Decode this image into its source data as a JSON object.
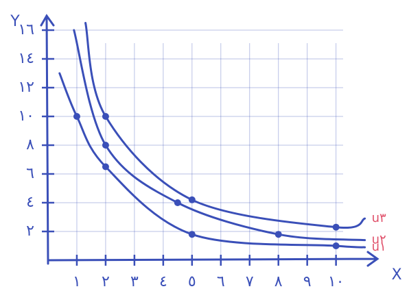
{
  "chart_data": {
    "type": "line",
    "x_label": "X",
    "y_label": "Y",
    "xlim": [
      0,
      11.2
    ],
    "ylim": [
      0,
      17
    ],
    "xticks": [
      {
        "value": 1,
        "label": "١"
      },
      {
        "value": 2,
        "label": "٢"
      },
      {
        "value": 3,
        "label": "٣"
      },
      {
        "value": 4,
        "label": "٤"
      },
      {
        "value": 5,
        "label": "٥"
      },
      {
        "value": 6,
        "label": "٦"
      },
      {
        "value": 7,
        "label": "٧"
      },
      {
        "value": 8,
        "label": "٨"
      },
      {
        "value": 9,
        "label": "٩"
      },
      {
        "value": 10,
        "label": "١٠"
      }
    ],
    "yticks": [
      {
        "value": 2,
        "label": "٢"
      },
      {
        "value": 4,
        "label": "٤"
      },
      {
        "value": 6,
        "label": "٦"
      },
      {
        "value": 8,
        "label": "٨"
      },
      {
        "value": 10,
        "label": "١٠"
      },
      {
        "value": 12,
        "label": "١٢"
      },
      {
        "value": 14,
        "label": "١٤"
      },
      {
        "value": 16,
        "label": "١٦"
      }
    ],
    "grid": true,
    "axis_color": "#3a4fb8",
    "label_color": "#e0506a",
    "series": [
      {
        "name": "u۳",
        "color": "#3a4fb8",
        "x": [
          1.3,
          2,
          5,
          10,
          11
        ],
        "values": [
          16.5,
          10,
          4.2,
          2.3,
          2.9
        ]
      },
      {
        "name": "u۲",
        "color": "#3a4fb8",
        "x": [
          0.9,
          2,
          4.5,
          8,
          11
        ],
        "values": [
          16,
          8,
          4,
          1.8,
          1.4
        ]
      },
      {
        "name": "u۱",
        "color": "#3a4fb8",
        "x": [
          0.4,
          1,
          2,
          5,
          10,
          11
        ],
        "values": [
          13,
          10,
          6.5,
          1.8,
          1,
          0.9
        ]
      }
    ]
  }
}
